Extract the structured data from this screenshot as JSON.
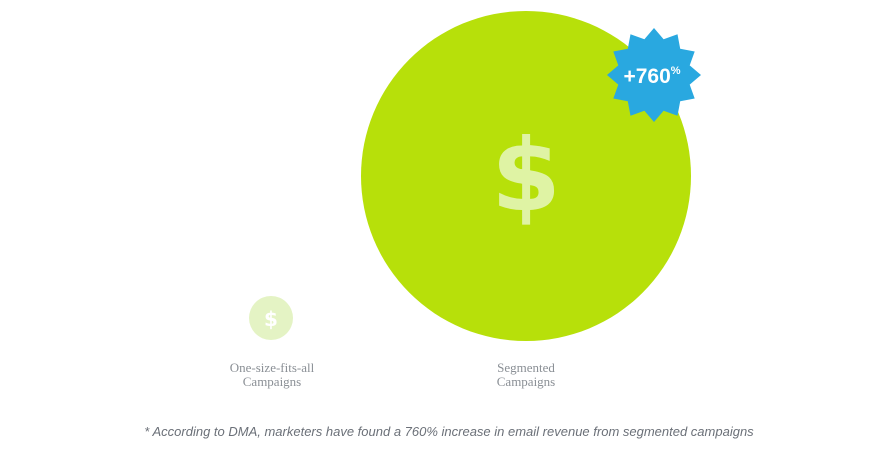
{
  "big_circle": {
    "icon": "$",
    "badge": {
      "number": "+760",
      "unit": "%"
    }
  },
  "small_circle": {
    "icon": "$"
  },
  "labels": [
    [
      "One-size-fits-all",
      "Campaigns"
    ],
    [
      "Segmented",
      "Campaigns"
    ]
  ],
  "footnote": "* According to DMA, marketers have found a 760% increase in email revenue from segmented campaigns"
}
